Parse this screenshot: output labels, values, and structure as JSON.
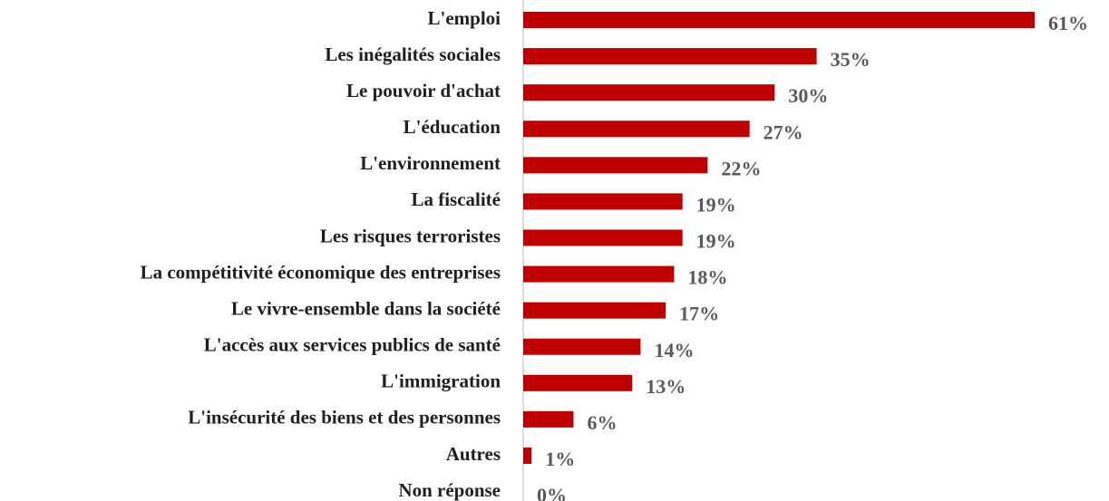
{
  "chart_data": {
    "type": "bar",
    "orientation": "horizontal",
    "categories": [
      "L'emploi",
      "Les inégalités sociales",
      "Le pouvoir d'achat",
      "L'éducation",
      "L'environnement",
      "La fiscalité",
      "Les risques terroristes",
      "La compétitivité économique des entreprises",
      "Le vivre-ensemble dans la société",
      "L'accès aux services publics de santé",
      "L'immigration",
      "L'insécurité des biens et des personnes",
      "Autres",
      "Non réponse"
    ],
    "values": [
      61,
      35,
      30,
      27,
      22,
      19,
      19,
      18,
      17,
      14,
      13,
      6,
      1,
      0
    ],
    "value_labels": [
      "61%",
      "35%",
      "30%",
      "27%",
      "22%",
      "19%",
      "19%",
      "18%",
      "17%",
      "14%",
      "13%",
      "6%",
      "1%",
      "0%"
    ],
    "color": "#c00000"
  }
}
